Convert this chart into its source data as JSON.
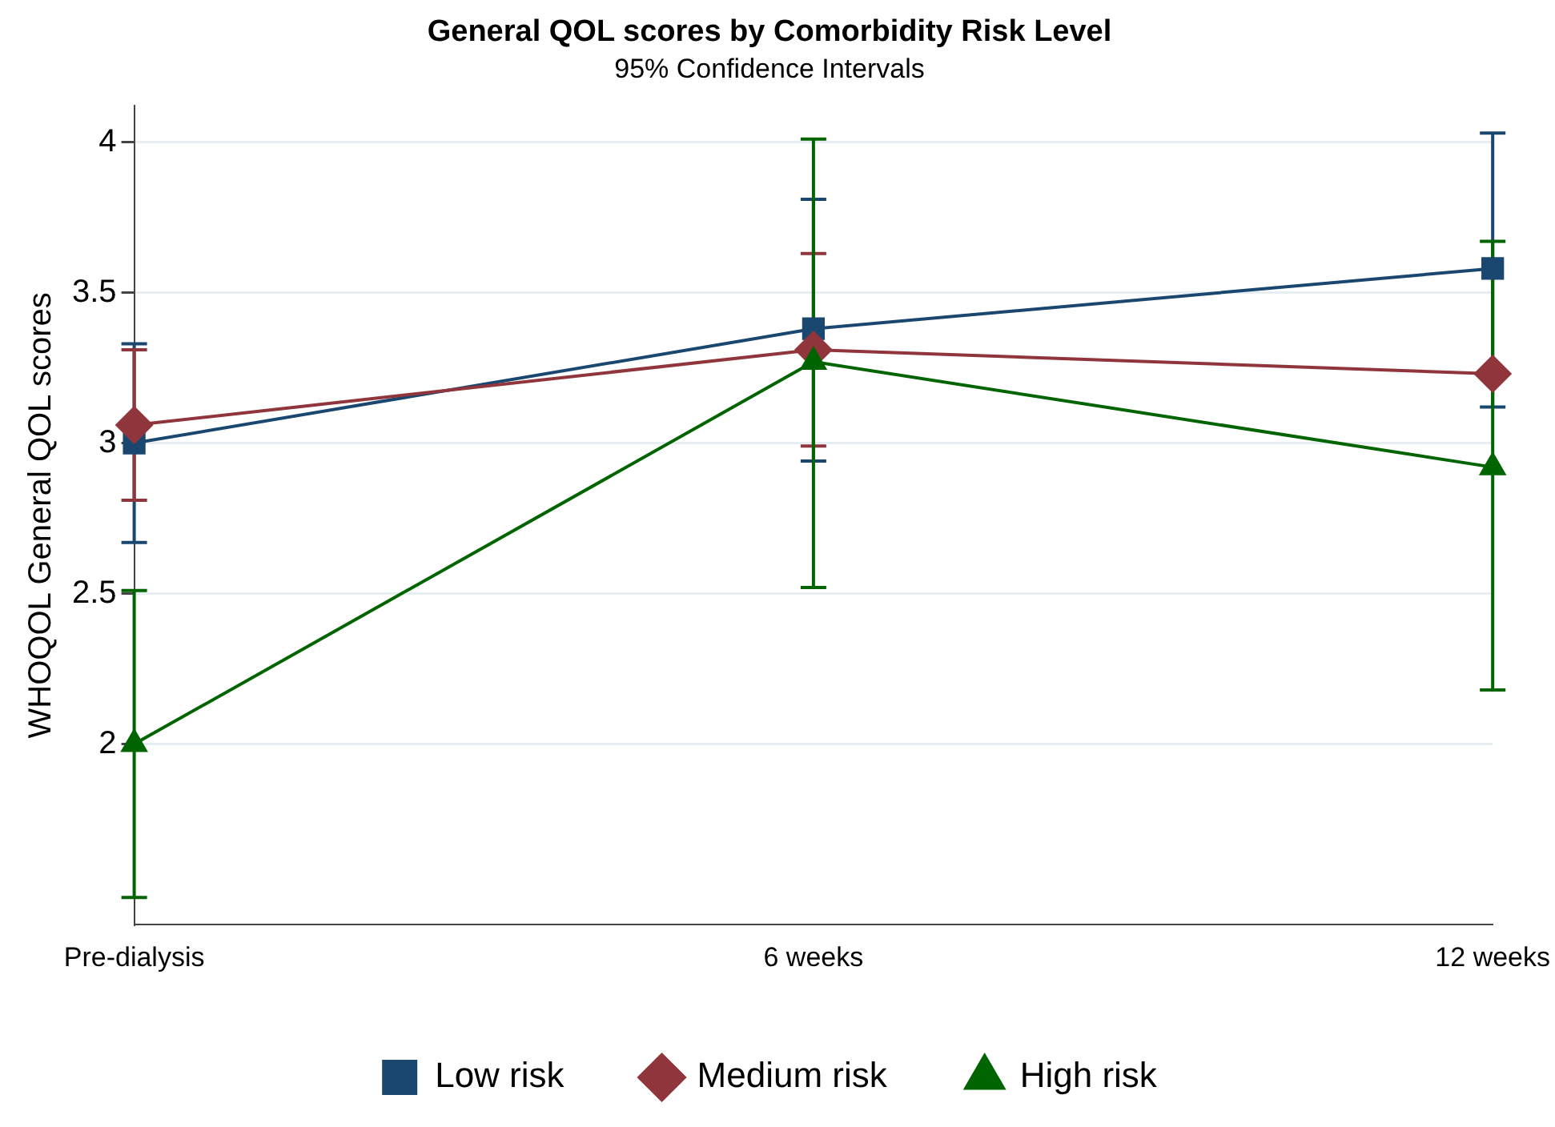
{
  "chart_data": {
    "type": "line",
    "title": "General QOL scores by Comorbidity Risk Level",
    "subtitle": "95% Confidence Intervals",
    "ylabel": "WHOQOL General QOL scores",
    "categories": [
      "Pre-dialysis",
      "6 weeks",
      "12 weeks"
    ],
    "series": [
      {
        "name": "Low risk",
        "color": "#1a476f",
        "marker": "square",
        "values": [
          3.0,
          3.38,
          3.58
        ],
        "errors": [
          [
            2.67,
            3.33
          ],
          [
            2.94,
            3.81
          ],
          [
            3.12,
            4.03
          ]
        ]
      },
      {
        "name": "Medium risk",
        "color": "#90353b",
        "marker": "diamond",
        "values": [
          3.06,
          3.31,
          3.23
        ],
        "errors": [
          [
            2.81,
            3.31
          ],
          [
            2.99,
            3.63
          ],
          null
        ]
      },
      {
        "name": "High risk",
        "color": "#006400",
        "marker": "triangle",
        "values": [
          2.0,
          3.27,
          2.92
        ],
        "errors": [
          [
            1.49,
            2.51
          ],
          [
            2.52,
            4.01
          ],
          [
            2.18,
            3.67
          ]
        ]
      }
    ],
    "ylim": [
      1.4,
      4.12
    ],
    "yticks": [
      2,
      2.5,
      3,
      3.5,
      4
    ],
    "grid": "y",
    "legend": "bottom",
    "line_style": "solid"
  }
}
